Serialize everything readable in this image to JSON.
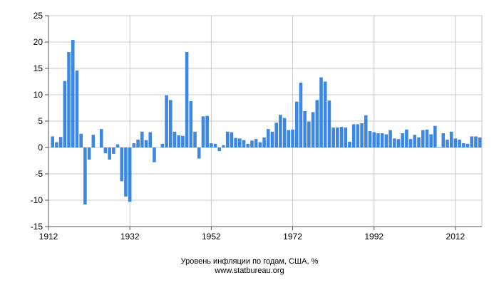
{
  "chart_data": {
    "type": "bar",
    "title": "Уровень инфляции по годам, США, %",
    "subtitle": "www.statbureau.org",
    "xlabel": "",
    "ylabel": "",
    "ylim": [
      -15,
      25
    ],
    "yticks": [
      -15,
      -10,
      -5,
      0,
      5,
      10,
      15,
      20,
      25
    ],
    "xticks": [
      1912,
      1932,
      1952,
      1972,
      1992,
      2012
    ],
    "grid": true,
    "color": "#3c86e4",
    "series": [
      {
        "x": [
          1913,
          1914,
          1915,
          1916,
          1917,
          1918,
          1919,
          1920,
          1921,
          1922,
          1923,
          1924,
          1925,
          1926,
          1927,
          1928,
          1929,
          1930,
          1931,
          1932,
          1933,
          1934,
          1935,
          1936,
          1937,
          1938,
          1939,
          1940,
          1941,
          1942,
          1943,
          1944,
          1945,
          1946,
          1947,
          1948,
          1949,
          1950,
          1951,
          1952,
          1953,
          1954,
          1955,
          1956,
          1957,
          1958,
          1959,
          1960,
          1961,
          1962,
          1963,
          1964,
          1965,
          1966,
          1967,
          1968,
          1969,
          1970,
          1971,
          1972,
          1973,
          1974,
          1975,
          1976,
          1977,
          1978,
          1979,
          1980,
          1981,
          1982,
          1983,
          1984,
          1985,
          1986,
          1987,
          1988,
          1989,
          1990,
          1991,
          1992,
          1993,
          1994,
          1995,
          1996,
          1997,
          1998,
          1999,
          2000,
          2001,
          2002,
          2003,
          2004,
          2005,
          2006,
          2007,
          2008,
          2009,
          2010,
          2011,
          2012,
          2013,
          2014,
          2015,
          2016,
          2017,
          2018
        ],
        "values": [
          2.1,
          1.0,
          2.0,
          12.6,
          18.1,
          20.4,
          14.6,
          2.6,
          -10.8,
          -2.3,
          2.4,
          0.0,
          3.5,
          -1.1,
          -2.3,
          -1.2,
          0.6,
          -6.4,
          -9.3,
          -10.3,
          0.8,
          1.5,
          3.0,
          1.4,
          2.9,
          -2.8,
          0.0,
          0.7,
          9.9,
          9.0,
          3.0,
          2.3,
          2.2,
          18.1,
          8.8,
          3.0,
          -2.1,
          5.9,
          6.0,
          0.8,
          0.7,
          -0.7,
          0.4,
          3.0,
          2.9,
          1.8,
          1.7,
          1.4,
          0.7,
          1.3,
          1.6,
          1.0,
          1.9,
          3.5,
          3.0,
          4.7,
          6.2,
          5.6,
          3.3,
          3.4,
          8.7,
          12.3,
          6.9,
          4.9,
          6.7,
          9.0,
          13.3,
          12.5,
          8.9,
          3.8,
          3.8,
          3.9,
          3.8,
          1.1,
          4.4,
          4.4,
          4.6,
          6.1,
          3.1,
          2.9,
          2.7,
          2.7,
          2.5,
          3.3,
          1.7,
          1.6,
          2.7,
          3.4,
          1.6,
          2.4,
          1.9,
          3.3,
          3.4,
          2.5,
          4.1,
          0.1,
          2.7,
          1.5,
          3.0,
          1.7,
          1.5,
          0.8,
          0.7,
          2.1,
          2.1,
          1.9
        ]
      }
    ]
  }
}
